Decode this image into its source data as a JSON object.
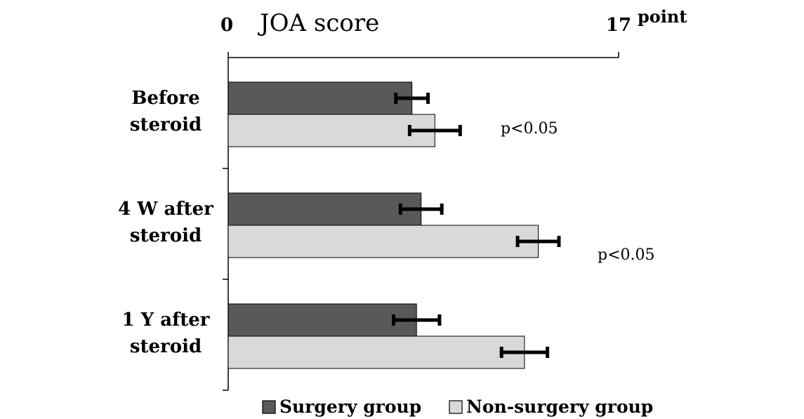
{
  "chart_data": {
    "type": "bar",
    "orientation": "horizontal",
    "title": "JOA score",
    "axis_min_label": "0",
    "axis_max_label": "17",
    "unit": "point",
    "xlim": [
      0,
      17
    ],
    "categories": [
      [
        "Before",
        "steroid"
      ],
      [
        "4 W after",
        "steroid"
      ],
      [
        "1 Y after",
        "steroid"
      ]
    ],
    "series": [
      {
        "name": "Surgery group",
        "color": "#595959",
        "values": [
          8.0,
          8.4,
          8.2
        ],
        "error": [
          0.7,
          0.9,
          1.0
        ]
      },
      {
        "name": "Non-surgery group",
        "color": "#d9d9d9",
        "values": [
          9.0,
          13.5,
          12.9
        ],
        "error": [
          1.1,
          0.9,
          1.0
        ]
      }
    ],
    "annotations": [
      {
        "text": "p<0.05",
        "category": 0
      },
      {
        "text": "p<0.05",
        "category": 1
      }
    ],
    "legend_position": "bottom"
  }
}
